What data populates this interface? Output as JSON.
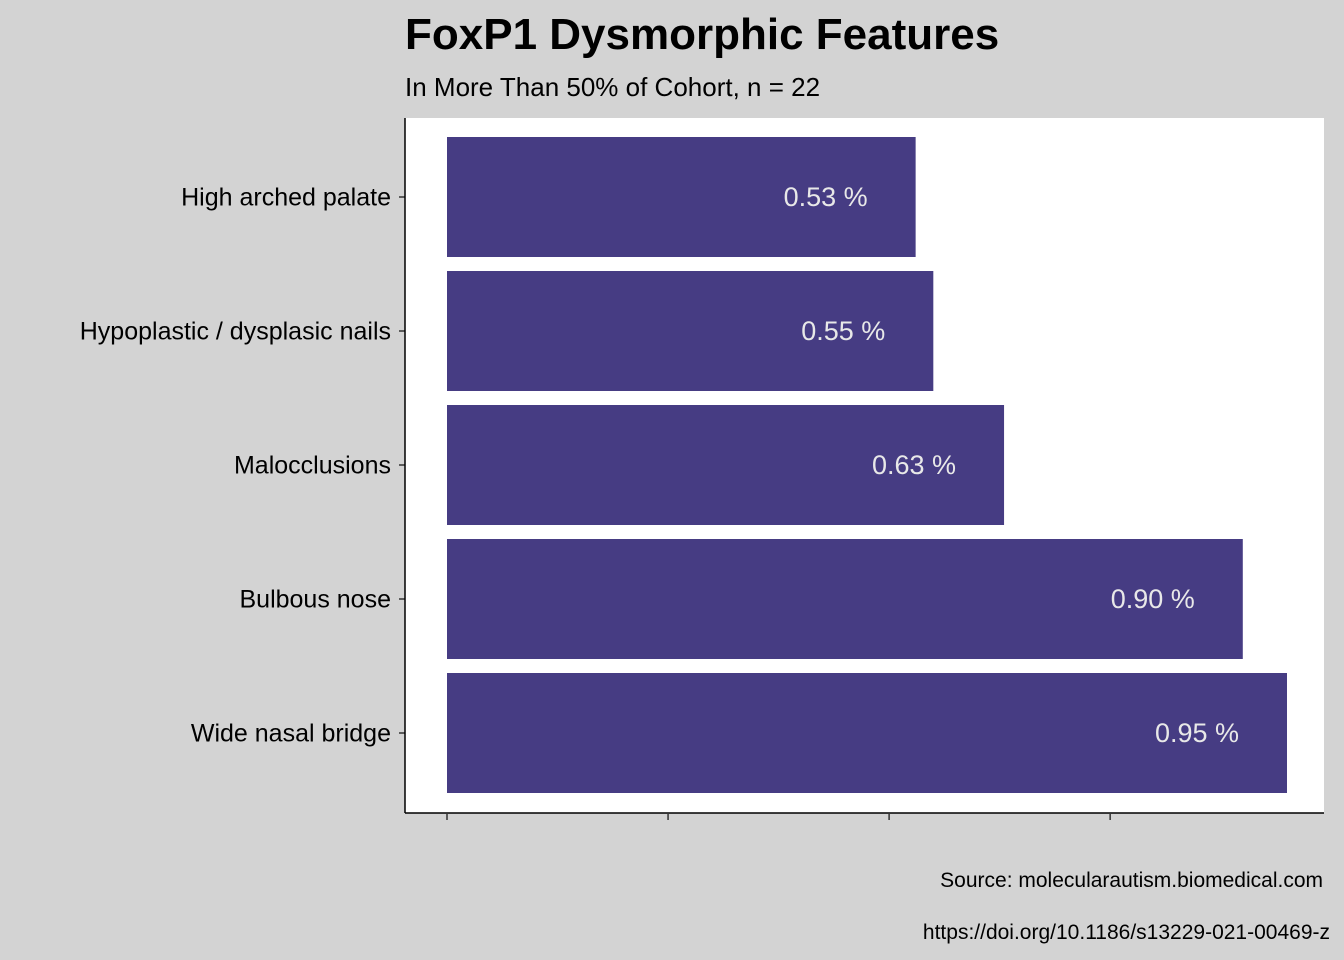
{
  "header": {
    "title": "FoxP1 Dysmorphic Features",
    "subtitle": "In More Than 50% of Cohort, n = 22"
  },
  "caption": {
    "source": "Source: molecularautism.biomedical.com",
    "doi": "https://doi.org/10.1186/s13229-021-00469-z"
  },
  "colors": {
    "background": "#d3d3d3",
    "panel": "#ffffff",
    "bar": "#463c83",
    "bar_label": "#e8e8e8"
  },
  "chart_data": {
    "type": "bar",
    "orientation": "horizontal",
    "categories": [
      "High arched palate",
      "Hypoplastic / dysplasic nails",
      "Malocclusions",
      "Bulbous nose",
      "Wide nasal bridge"
    ],
    "values": [
      0.53,
      0.55,
      0.63,
      0.9,
      0.95
    ],
    "data_labels": [
      "0.53 %",
      "0.55 %",
      "0.63 %",
      "0.90 %",
      "0.95 %"
    ],
    "xlim": [
      0,
      0.95
    ],
    "x_ticks": [
      0,
      0.25,
      0.5,
      0.75
    ],
    "x_tick_labels_shown": false,
    "grid": false,
    "legend": "none"
  }
}
